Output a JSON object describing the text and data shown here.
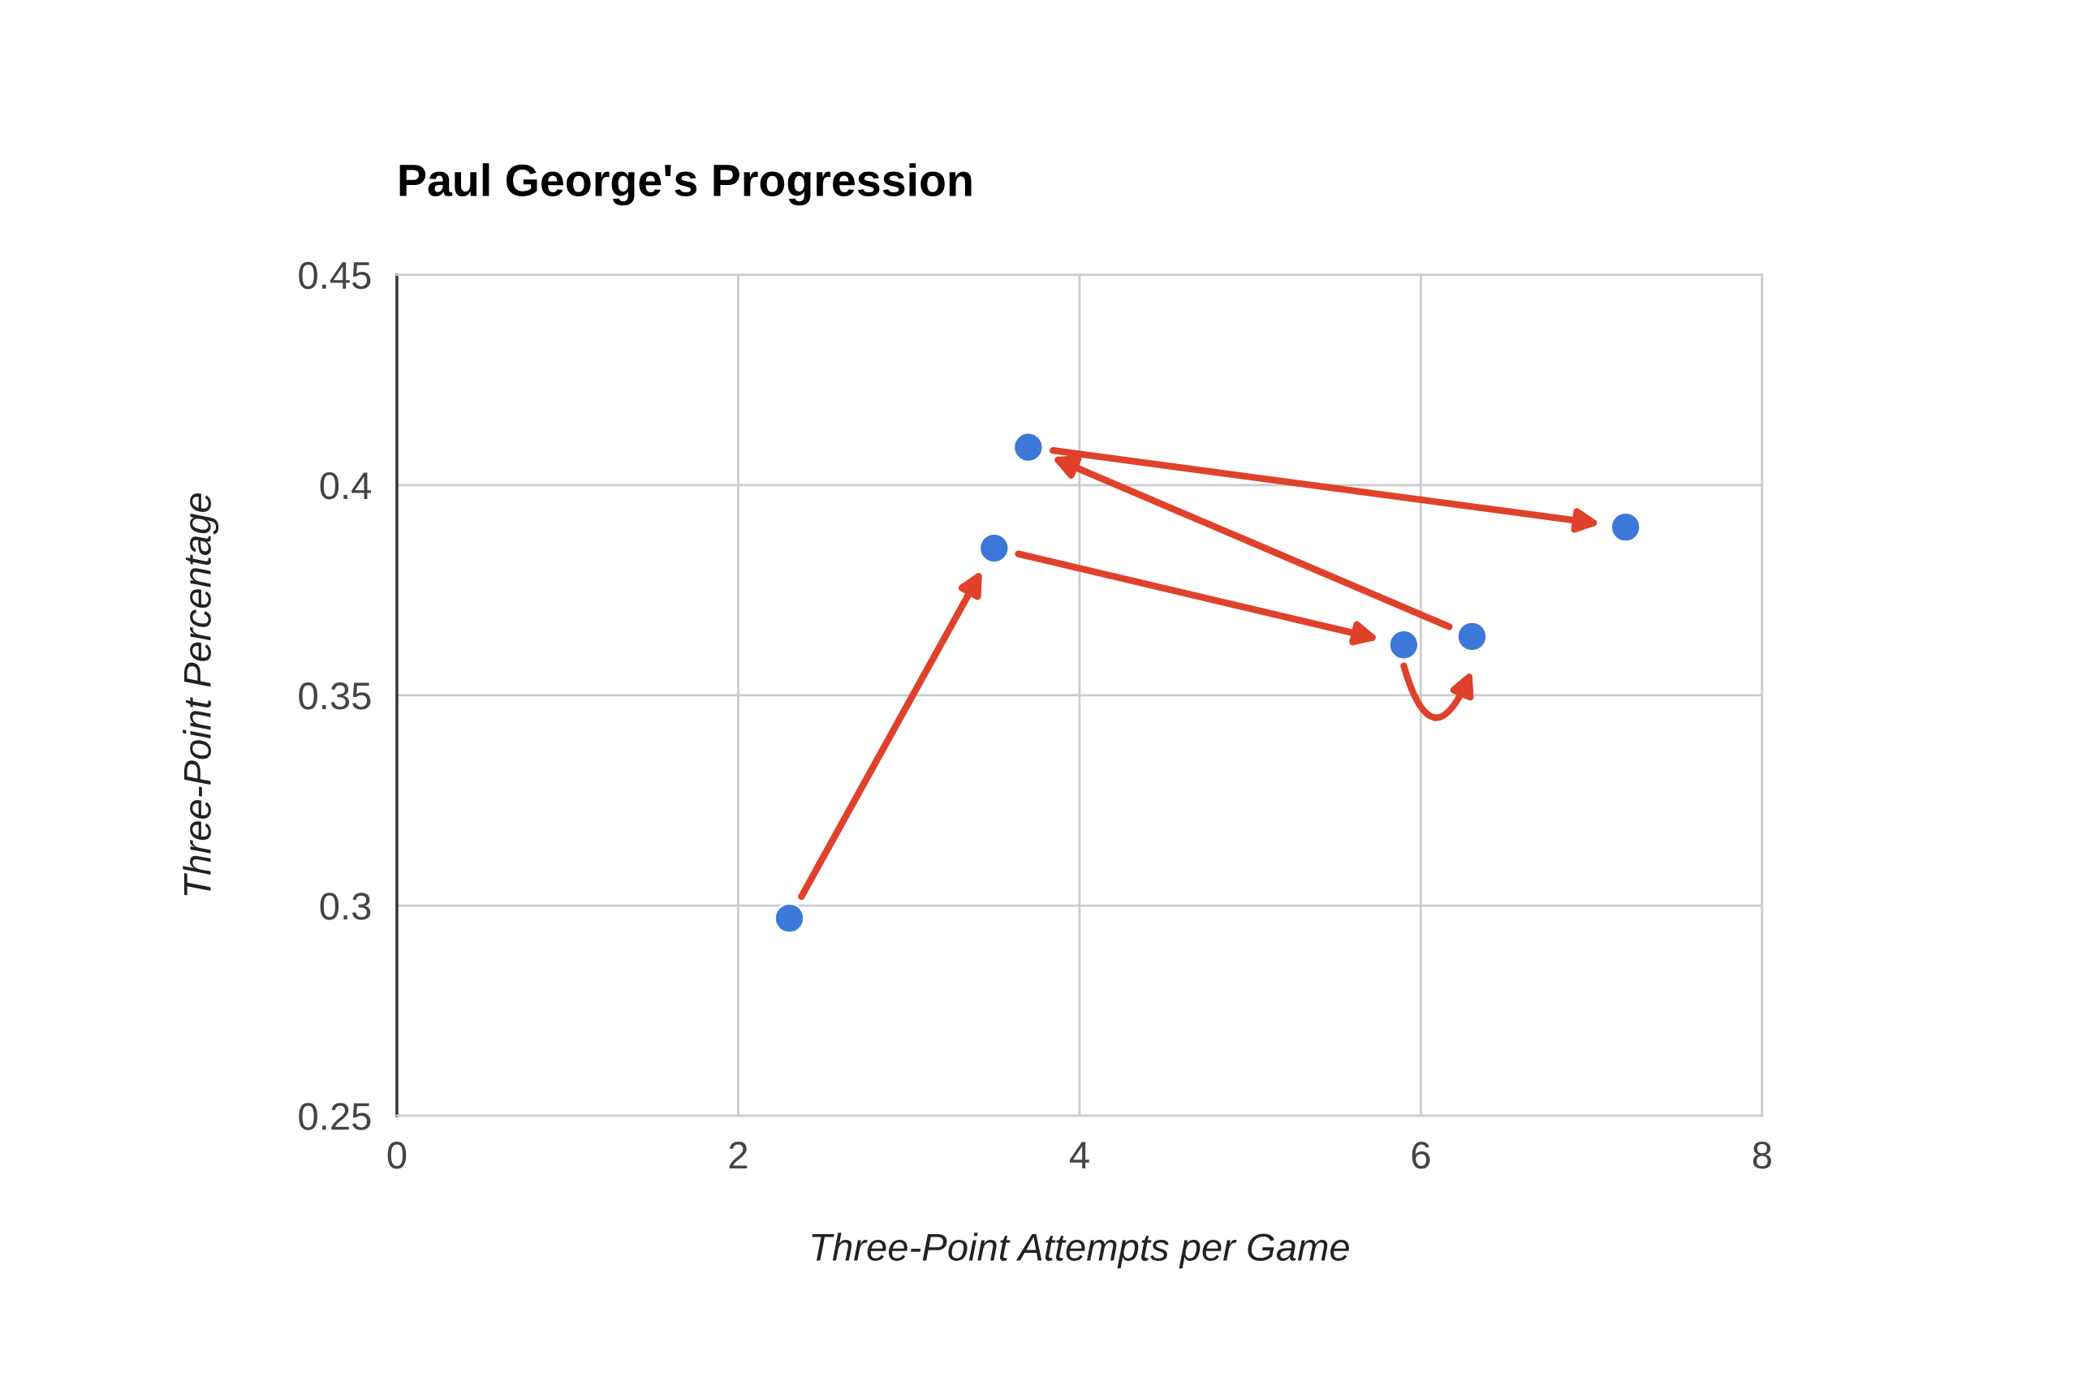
{
  "chart_data": {
    "type": "scatter",
    "title": "Paul George's Progression",
    "xlabel": "Three-Point Attempts per Game",
    "ylabel": "Three-Point Percentage",
    "series": [
      {
        "x": [
          2.3,
          3.5,
          5.9,
          6.3,
          3.7,
          7.2
        ],
        "values": [
          0.297,
          0.385,
          0.362,
          0.364,
          0.409,
          0.39
        ],
        "color": "#3c78d8"
      }
    ],
    "xlim": [
      0,
      8
    ],
    "xticks": [
      0,
      2,
      4,
      6,
      8
    ],
    "ylim": [
      0.25,
      0.45
    ],
    "yticks": [
      0.25,
      0.3,
      0.35,
      0.4,
      0.45
    ],
    "grid": true,
    "marker": "circle",
    "legend": false
  }
}
